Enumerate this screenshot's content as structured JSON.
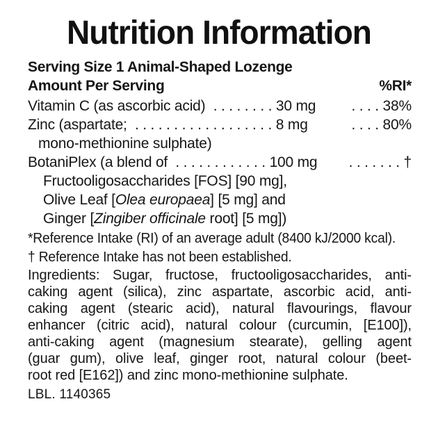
{
  "label": {
    "title": "Nutrition Information",
    "serving_size": "Serving Size 1 Animal-Shaped Lozenge",
    "header": {
      "amount": "Amount Per Serving",
      "ri": "%RI*"
    },
    "nutrients": {
      "vitamin_c": {
        "left": "Vitamin C (as ascorbic acid)  . . . . . . . . 30 mg",
        "ri": ". . . . 38%"
      },
      "zinc": {
        "left": "Zinc (aspartate;  . . . . . . . . . . . . . . . . . . 8 mg",
        "ri": ". . . . 80%"
      },
      "zinc_continuation": {
        "left": "mono-methionine sulphate)"
      },
      "botaniplex": {
        "left": "BotaniPlex (a blend of  . . . . . . . . . . . . 100 mg",
        "ri": ". . . . . . . †"
      },
      "botaniplex_fos": {
        "left": "Fructooligosaccharides [FOS] [90 mg],"
      },
      "botaniplex_olive": {
        "pre": "Olive Leaf [",
        "latin_name": "Olea europaea",
        "post": "] [5 mg] and"
      },
      "botaniplex_ginger": {
        "pre": "Ginger [",
        "latin_name": "Zingiber officinale",
        "post": " root] [5 mg])"
      }
    },
    "footnotes": {
      "ri_note": "*Reference Intake (RI) of an average adult (8400 kJ/2000 kcal).",
      "dagger_note": "† Reference Intake has not been established."
    },
    "ingredients": {
      "lines": [
        "Ingredients: Sugar, fructose, fructooligosaccharides, anti-",
        "caking agent (silica), zinc aspartate, ascorbic acid, anti-",
        "caking agent (stearic acid), natural flavourings, flavour",
        "enhancer (citric acid), natural colour (curcumin, [E100]),",
        "anti-caking agent (magnesium stearate), gelling agent",
        "(guar gum), olive leaf, ginger root, natural colour (beet-",
        "root red [E162]) and zinc mono-methionine sulphate."
      ]
    },
    "lbl_code": "LBL. 1140365",
    "colors": {
      "text": "#161616",
      "background": "#ffffff"
    }
  }
}
